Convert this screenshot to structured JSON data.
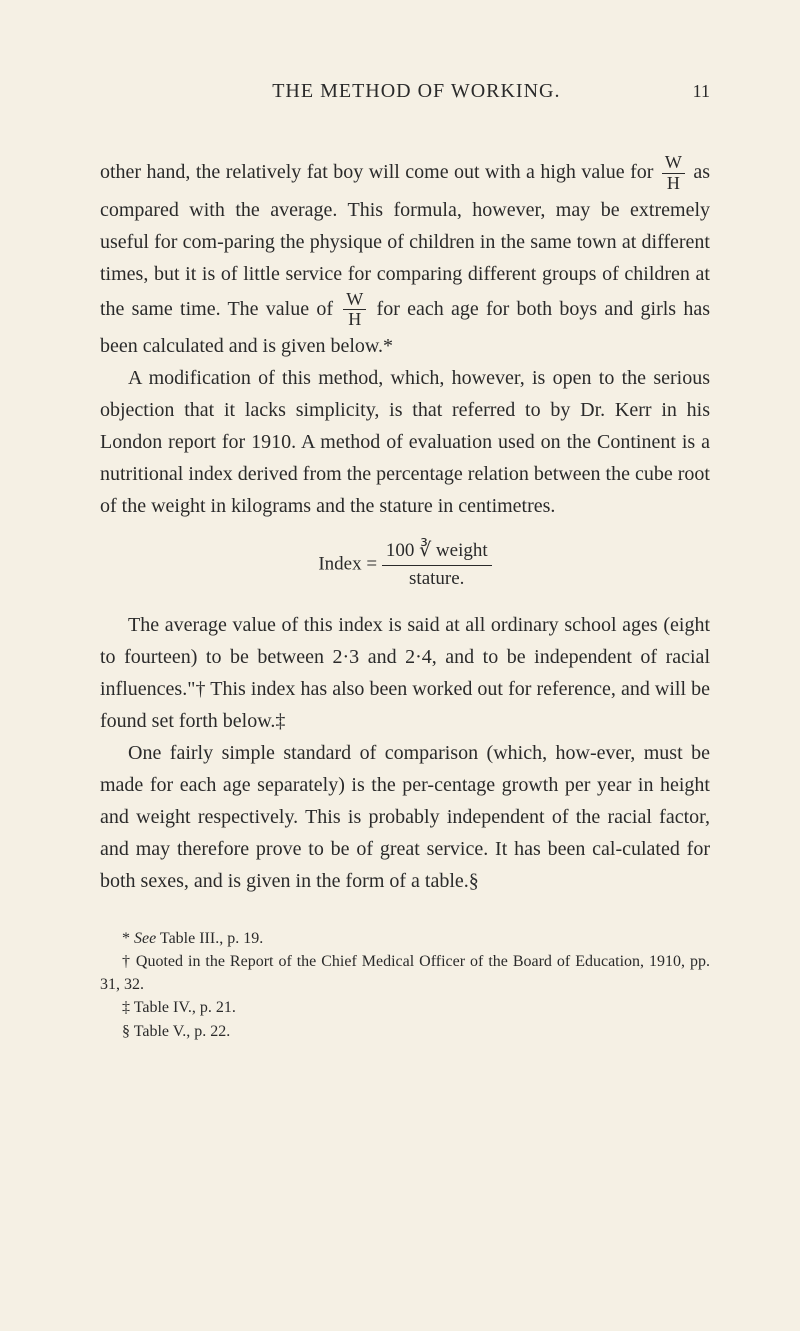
{
  "header": {
    "title": "THE METHOD OF WORKING.",
    "pageNumber": "11"
  },
  "para1_a": "other hand, the relatively fat boy will come out with a high value for ",
  "frac1_num": "W",
  "frac1_den": "H",
  "para1_b": " as compared with the average. This formula, however, may be extremely useful for com-paring the physique of children in the same town at different times, but it is of little service for comparing different groups of children at the same time. The value of ",
  "frac2_num": "W",
  "frac2_den": "H",
  "para1_c": " for each age for both boys and girls has been calculated and is given below.*",
  "para2": "A modification of this method, which, however, is open to the serious objection that it lacks simplicity, is that referred to by Dr. Kerr in his London report for 1910. A method of evaluation used on the Continent is a nutritional index derived from the percentage relation between the cube root of the weight in kilograms and the stature in centimetres.",
  "index_label": "Index = ",
  "index_num": "100 ∛ weight",
  "index_den": "stature.",
  "para3": "The average value of this index is said at all ordinary school ages (eight to fourteen) to be between 2·3 and 2·4, and to be independent of racial influences.\"† This index has also been worked out for reference, and will be found set forth below.‡",
  "para4": "One fairly simple standard of comparison (which, how-ever, must be made for each age separately) is the per-centage growth per year in height and weight respectively. This is probably independent of the racial factor, and may therefore prove to be of great service. It has been cal-culated for both sexes, and is given in the form of a table.§",
  "fn1_a": "* ",
  "fn1_b": "See",
  "fn1_c": " Table III., p. 19.",
  "fn2": "† Quoted in the Report of the Chief Medical Officer of the Board of Education, 1910, pp. 31, 32.",
  "fn3": "‡ Table IV., p. 21.",
  "fn4": "§ Table V., p. 22."
}
